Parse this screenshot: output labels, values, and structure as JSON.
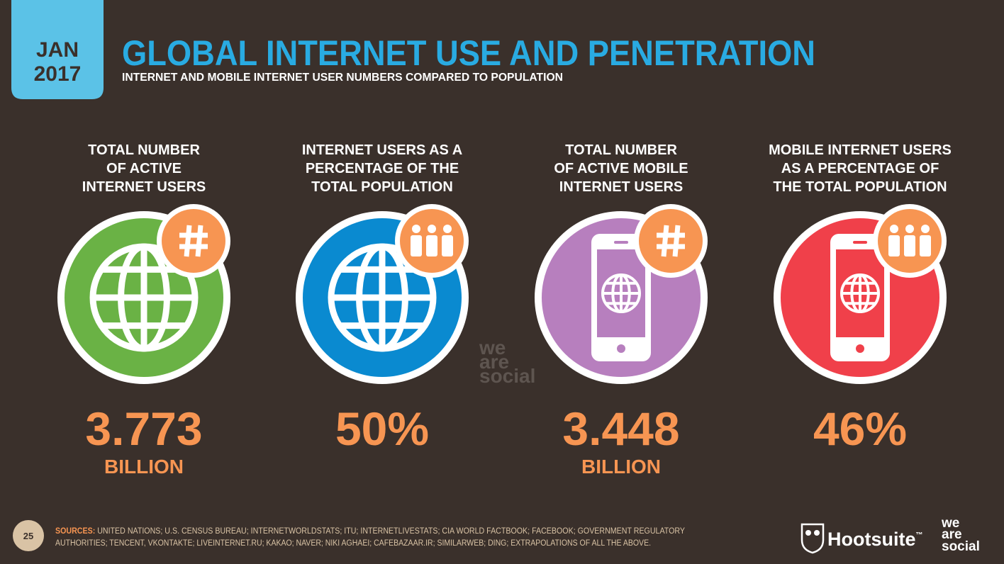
{
  "header": {
    "tab": [
      "JAN",
      "2017"
    ],
    "title": "GLOBAL INTERNET USE AND PENETRATION",
    "subtitle": "INTERNET AND MOBILE INTERNET USER NUMBERS COMPARED TO POPULATION"
  },
  "cards": [
    {
      "label": [
        "TOTAL NUMBER",
        "OF ACTIVE",
        "INTERNET USERS"
      ],
      "value": "3.773",
      "unit": "BILLION"
    },
    {
      "label": [
        "INTERNET USERS AS A",
        "PERCENTAGE OF THE",
        "TOTAL POPULATION"
      ],
      "value": "50%"
    },
    {
      "label": [
        "TOTAL NUMBER",
        "OF ACTIVE MOBILE",
        "INTERNET USERS"
      ],
      "value": "3.448",
      "unit": "BILLION"
    },
    {
      "label": [
        "MOBILE INTERNET USERS",
        "AS A PERCENTAGE OF",
        "THE TOTAL POPULATION"
      ],
      "value": "46%"
    }
  ],
  "watermark": [
    "we",
    "are",
    "social"
  ],
  "footer": {
    "page": "25",
    "sources_label": "SOURCES:",
    "sources": [
      "UNITED NATIONS; U.S. CENSUS BUREAU; INTERNETWORLDSTATS; ITU; INTERNETLIVESTATS; CIA WORLD FACTBOOK; FACEBOOK; GOVERNMENT REGULATORY",
      "AUTHORITIES; TENCENT, VKONTAKTE; LIVEINTERNET.RU; KAKAO; NAVER; NIKI AGHAEI; CAFEBAZAAR.IR; SIMILARWEB; DING; EXTRAPOLATIONS OF ALL THE ABOVE."
    ],
    "hootsuite": "Hootsuite",
    "tm": "™",
    "wearesocial": [
      "we",
      "are",
      "social"
    ]
  }
}
